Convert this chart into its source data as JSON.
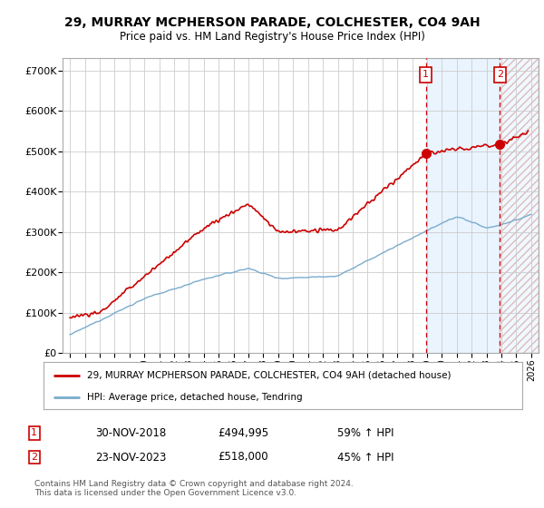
{
  "title1": "29, MURRAY MCPHERSON PARADE, COLCHESTER, CO4 9AH",
  "title2": "Price paid vs. HM Land Registry's House Price Index (HPI)",
  "legend_line1": "29, MURRAY MCPHERSON PARADE, COLCHESTER, CO4 9AH (detached house)",
  "legend_line2": "HPI: Average price, detached house, Tendring",
  "sale1_date": "30-NOV-2018",
  "sale1_price": "£494,995",
  "sale1_hpi": "59% ↑ HPI",
  "sale2_date": "23-NOV-2023",
  "sale2_price": "£518,000",
  "sale2_hpi": "45% ↑ HPI",
  "footer": "Contains HM Land Registry data © Crown copyright and database right 2024.\nThis data is licensed under the Open Government Licence v3.0.",
  "red_color": "#cc0000",
  "blue_color": "#7aabcc",
  "grid_color": "#cccccc",
  "xlim_start": 1994.5,
  "xlim_end": 2026.5,
  "ylim_min": 0,
  "ylim_max": 730000,
  "yticks": [
    0,
    100000,
    200000,
    300000,
    400000,
    500000,
    600000,
    700000
  ],
  "ytick_labels": [
    "£0",
    "£100K",
    "£200K",
    "£300K",
    "£400K",
    "£500K",
    "£600K",
    "£700K"
  ],
  "sale1_year": 2018.917,
  "sale2_year": 2023.9,
  "sale1_price_val": 494995,
  "sale2_price_val": 518000
}
